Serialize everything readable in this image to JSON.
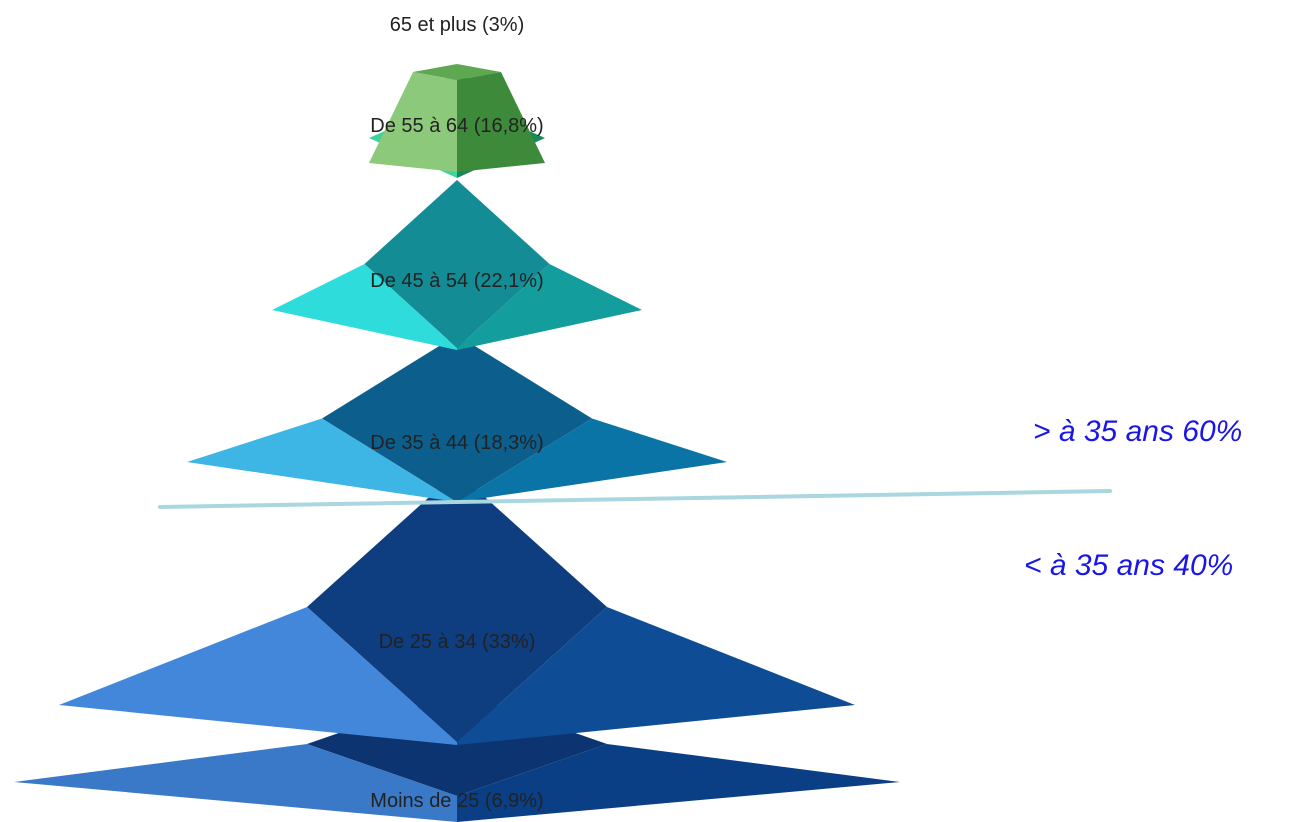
{
  "chart_data": {
    "type": "pyramid",
    "levels": [
      {
        "label": "65 et plus (3%)",
        "category": "65 et plus",
        "value": 3.0,
        "colors": {
          "top": "#5fa852",
          "left": "#8dc97a",
          "right": "#3d8a3a"
        }
      },
      {
        "label": "De 55 à 64 (16,8%)",
        "category": "De 55 à 64",
        "value": 16.8,
        "colors": {
          "top": "#1f8a5e",
          "left": "#3fd39b",
          "right": "#178a5b"
        }
      },
      {
        "label": "De 45 à 54 (22,1%)",
        "category": "De 45 à 54",
        "value": 22.1,
        "colors": {
          "top": "#138c95",
          "left": "#2fdcdc",
          "right": "#149d9d"
        }
      },
      {
        "label": "De 35 à 44 (18,3%)",
        "category": "De 35 à 44",
        "value": 18.3,
        "colors": {
          "top": "#0c5f8c",
          "left": "#3db5e5",
          "right": "#0a74a6"
        }
      },
      {
        "label": "De 25 à 34 (33%)",
        "category": "De 25 à 34",
        "value": 33.0,
        "colors": {
          "top": "#0e3e80",
          "left": "#4287d9",
          "right": "#0e4d96"
        }
      },
      {
        "label": "Moins de 25 (6,9%)",
        "category": "Moins de 25",
        "value": 6.9,
        "colors": {
          "top": "#0b3470",
          "left": "#3a78c8",
          "right": "#0a3f86"
        }
      }
    ],
    "annotations": [
      {
        "text": ">  à 35 ans 60%"
      },
      {
        "text": "<  à 35 ans 40%"
      }
    ],
    "divider_color": "#a9d6df"
  }
}
